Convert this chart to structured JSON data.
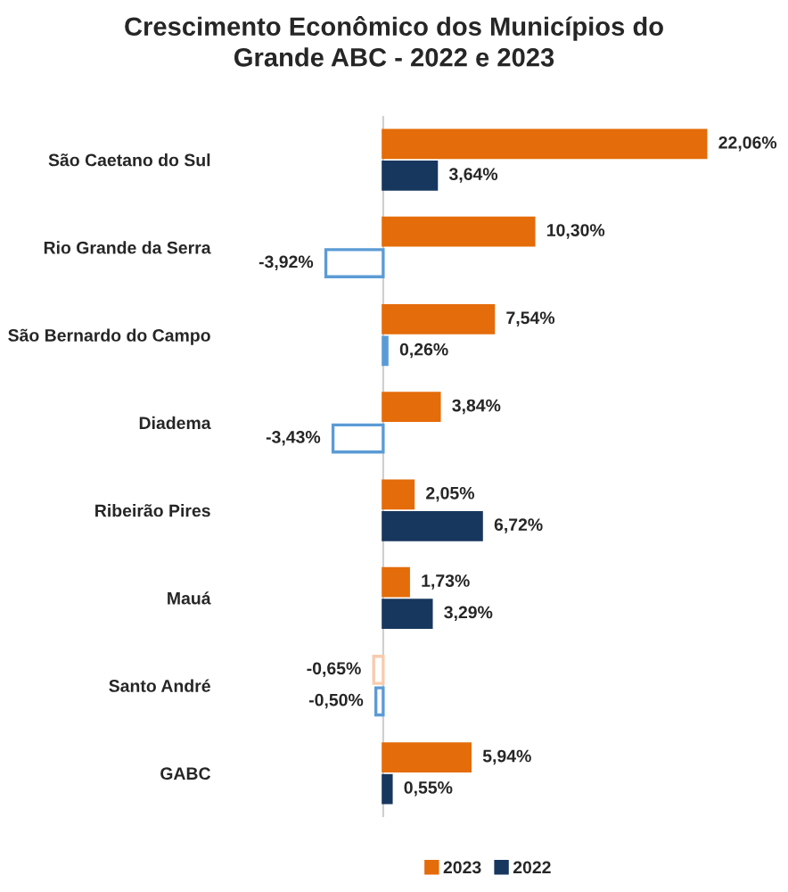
{
  "chart_data": {
    "type": "bar",
    "orientation": "horizontal",
    "title": "Crescimento Econômico dos Municípios do\nGrande ABC - 2022 e 2023",
    "categories": [
      "São Caetano do Sul",
      "Rio Grande da Serra",
      "São Bernardo do Campo",
      "Diadema",
      "Ribeirão Pires",
      "Mauá",
      "Santo André",
      "GABC"
    ],
    "series": [
      {
        "name": "2023",
        "color": "#e46c0a",
        "colors": [
          "#e46c0a",
          "#e46c0a",
          "#e46c0a",
          "#e46c0a",
          "#e46c0a",
          "#e46c0a",
          "#f8cbad",
          "#e46c0a"
        ],
        "values": [
          22.06,
          10.3,
          7.54,
          3.84,
          2.05,
          1.73,
          -0.65,
          5.94
        ],
        "value_labels": [
          "22,06%",
          "10,30%",
          "7,54%",
          "3,84%",
          "2,05%",
          "1,73%",
          "-0,65%",
          "5,94%"
        ]
      },
      {
        "name": "2022",
        "color": "#17375e",
        "colors": [
          "#17375e",
          "#5b9bd5",
          "#5b9bd5",
          "#5b9bd5",
          "#17375e",
          "#17375e",
          "#5b9bd5",
          "#17375e"
        ],
        "values": [
          3.64,
          -3.92,
          0.26,
          -3.43,
          6.72,
          3.29,
          -0.5,
          0.55
        ],
        "value_labels": [
          "3,64%",
          "-3,92%",
          "0,26%",
          "-3,43%",
          "6,72%",
          "3,29%",
          "-0,50%",
          "0,55%"
        ]
      }
    ],
    "legend": "bottom",
    "tick_labels": "y"
  }
}
